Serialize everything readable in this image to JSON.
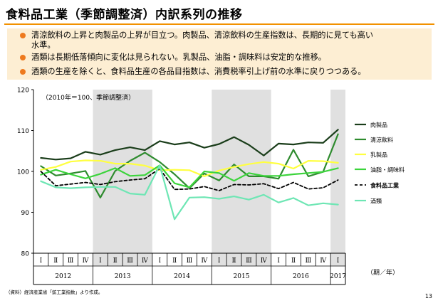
{
  "title": "食料品工業（季節調整済）内訳系列の推移",
  "bullets": [
    [
      "清涼飲料の上昇と肉製品の上昇が目立つ。肉製品、清涼飲料の生産指数は、長期的に見ても高い",
      "水準。"
    ],
    [
      "酒類は長期低落傾向に変化は見られない。乳製品、油脂・調味料は安定的な推移。"
    ],
    [
      "酒類の生産を除くと、食料品生産の各品目指数は、消費税率引上げ前の水準に戻りつつある。"
    ]
  ],
  "source": "（資料）経済産業省「鉱工業指数」より作成。",
  "page_number": "13",
  "chart_data": {
    "type": "line",
    "note": "（2010年＝100、季節調整済）",
    "x_unit": "（期／年）",
    "quarters": [
      "Ⅰ",
      "Ⅱ",
      "Ⅲ",
      "Ⅳ",
      "Ⅰ",
      "Ⅱ",
      "Ⅲ",
      "Ⅳ",
      "Ⅰ",
      "Ⅱ",
      "Ⅲ",
      "Ⅳ",
      "Ⅰ",
      "Ⅱ",
      "Ⅲ",
      "Ⅳ",
      "Ⅰ",
      "Ⅱ",
      "Ⅲ",
      "Ⅳ",
      "Ⅰ"
    ],
    "years": [
      {
        "label": "2012",
        "start": 0,
        "end": 3
      },
      {
        "label": "2013",
        "start": 4,
        "end": 7
      },
      {
        "label": "2014",
        "start": 8,
        "end": 11
      },
      {
        "label": "2015",
        "start": 12,
        "end": 15
      },
      {
        "label": "2016",
        "start": 16,
        "end": 19
      },
      {
        "label": "2017",
        "start": 20,
        "end": 20
      }
    ],
    "shaded_years": [
      1,
      3,
      5
    ],
    "ylim": [
      80,
      120
    ],
    "yticks": [
      80,
      90,
      100,
      110,
      120
    ],
    "series": [
      {
        "name": "肉製品",
        "color": "#1a3d1a",
        "dash": "",
        "width": 2.2,
        "values": [
          103.3,
          102.9,
          103.2,
          104.8,
          104.1,
          105.2,
          105.9,
          105.2,
          107.4,
          106.6,
          107.1,
          105.8,
          106.7,
          108.4,
          106.5,
          103.9,
          106.8,
          106.6,
          107.1,
          107.0,
          110.2
        ]
      },
      {
        "name": "清涼飲料",
        "color": "#2e8b2e",
        "dash": "",
        "width": 2.2,
        "values": [
          101.3,
          99.0,
          99.5,
          100.1,
          93.6,
          100.1,
          102.6,
          104.6,
          102.3,
          99.3,
          95.9,
          99.5,
          97.8,
          101.7,
          98.8,
          98.8,
          98.2,
          105.3,
          98.8,
          99.9,
          109.1
        ]
      },
      {
        "name": "乳製品",
        "color": "#ffff40",
        "dash": "",
        "width": 2.2,
        "values": [
          100.4,
          101.1,
          102.4,
          102.7,
          102.6,
          101.9,
          101.9,
          101.4,
          100.3,
          100.4,
          100.3,
          98.8,
          100.2,
          101.1,
          101.8,
          102.3,
          101.9,
          100.7,
          102.6,
          102.5,
          102.1
        ]
      },
      {
        "name": "油脂・調味料",
        "color": "#3cd43c",
        "dash": "",
        "width": 2.2,
        "values": [
          99.2,
          100.4,
          99.3,
          98.3,
          99.4,
          100.8,
          98.9,
          99.1,
          101.5,
          97.1,
          96.1,
          100.0,
          99.6,
          97.7,
          99.6,
          98.9,
          98.9,
          99.3,
          99.6,
          99.9,
          100.8
        ]
      },
      {
        "name": "食料品工業",
        "color": "#000000",
        "dash": "4,3",
        "width": 1.8,
        "values": [
          100.0,
          96.5,
          96.9,
          97.3,
          96.8,
          97.5,
          97.9,
          98.2,
          100.7,
          95.6,
          95.7,
          96.3,
          95.3,
          96.8,
          96.7,
          97.0,
          95.8,
          97.3,
          95.7,
          96.0,
          97.9
        ]
      },
      {
        "name": "酒類",
        "color": "#6ee6b4",
        "dash": "",
        "width": 2.2,
        "values": [
          97.6,
          96.1,
          95.9,
          96.1,
          96.2,
          96.2,
          94.6,
          94.3,
          101.5,
          88.3,
          93.6,
          93.7,
          93.3,
          93.9,
          93.1,
          94.3,
          92.4,
          93.5,
          91.7,
          92.2,
          91.9
        ]
      }
    ]
  }
}
